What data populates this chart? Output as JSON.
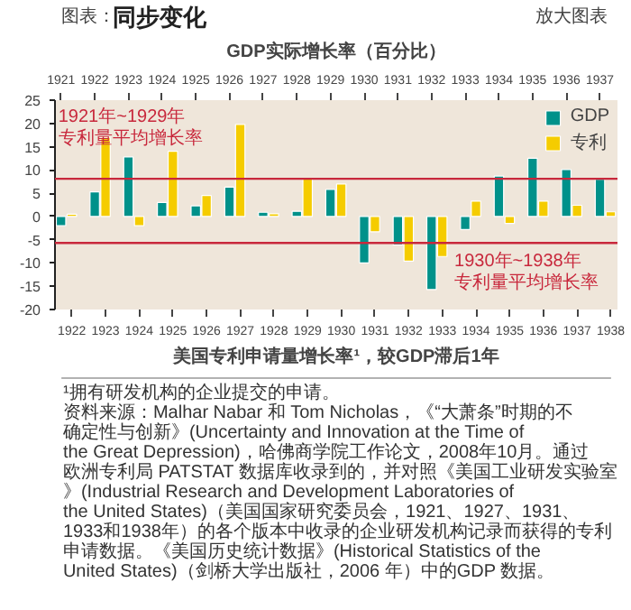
{
  "chart_data": {
    "type": "bar",
    "title": "同步变化",
    "x2label": "GDP实际增长率（百分比）",
    "xlabel": "美国专利申请量增长率¹，较GDP滞后1年",
    "annotations": [
      "图表：",
      "放大图表",
      "¹拥有研发机构的企业提交的申请。",
      "资料来源：Malhar Nabar 和 Tom Nicholas，《“大萧条”时期的不确定性与创新》(Uncertainty and Innovation at the Time of the Great Depression)，哈佛商学院工作论文，2008年10月。通过欧洲专利局 PATSTAT 数据库收录到的，并对照《美国工业研发实验室》(Industrial Research and Development Laboratories of the United States)（美国国家研究委员会，1921、1927、1931、1933和1938年）的各个版本中收录的企业研发机构记录而获得的专利申请数据。《美国历史统计数据》(Historical Statistics of the United States)（剑桥大学出版社，2006 年）中的GDP 数据。"
    ],
    "series": [
      {
        "name": "GDP",
        "color": "#00918a",
        "axis": "x2",
        "x": [
          1921,
          1922,
          1923,
          1924,
          1925,
          1926,
          1927,
          1928,
          1929,
          1930,
          1931,
          1932,
          1933,
          1934,
          1935,
          1936,
          1937
        ],
        "values": [
          -2,
          5.3,
          12.8,
          3,
          2.3,
          6.3,
          0.9,
          1.1,
          5.8,
          -10,
          -6.1,
          -15.7,
          -2.8,
          8.7,
          12.5,
          10.1,
          8
        ]
      },
      {
        "name": "专利",
        "color": "#f5cc00",
        "x": [
          1922,
          1923,
          1924,
          1925,
          1926,
          1927,
          1928,
          1929,
          1930,
          1931,
          1932,
          1933,
          1934,
          1935,
          1936,
          1937,
          1938
        ],
        "values": [
          0.5,
          17,
          -2,
          14,
          4.5,
          19.8,
          0.6,
          8.2,
          7,
          -3.3,
          -9.6,
          -8.6,
          3.3,
          -1.5,
          3.3,
          2.4,
          1
        ]
      }
    ],
    "xlim": [
      1921.5,
      1938.2
    ],
    "xticks": [
      1922,
      1923,
      1924,
      1925,
      1926,
      1927,
      1928,
      1929,
      1930,
      1931,
      1932,
      1933,
      1934,
      1935,
      1936,
      1937,
      1938
    ],
    "x2lim": [
      1920.82,
      1937.52
    ],
    "x2ticks": [
      1921,
      1922,
      1923,
      1924,
      1925,
      1926,
      1927,
      1928,
      1929,
      1930,
      1931,
      1932,
      1933,
      1934,
      1935,
      1936,
      1937
    ],
    "ylim": [
      -20,
      25
    ],
    "yticks": [
      -20,
      -15,
      -10,
      -5,
      0,
      5,
      10,
      15,
      20,
      25
    ],
    "ref_lines": [
      {
        "axis": "y",
        "value": 8.1,
        "label": "1921年~1929年专利量平均增长率",
        "color": "#c8283c"
      },
      {
        "axis": "y",
        "value": -5.7,
        "label": "1930年~1938年专利量平均增长率",
        "color": "#c8283c"
      }
    ],
    "legend": "top right"
  }
}
